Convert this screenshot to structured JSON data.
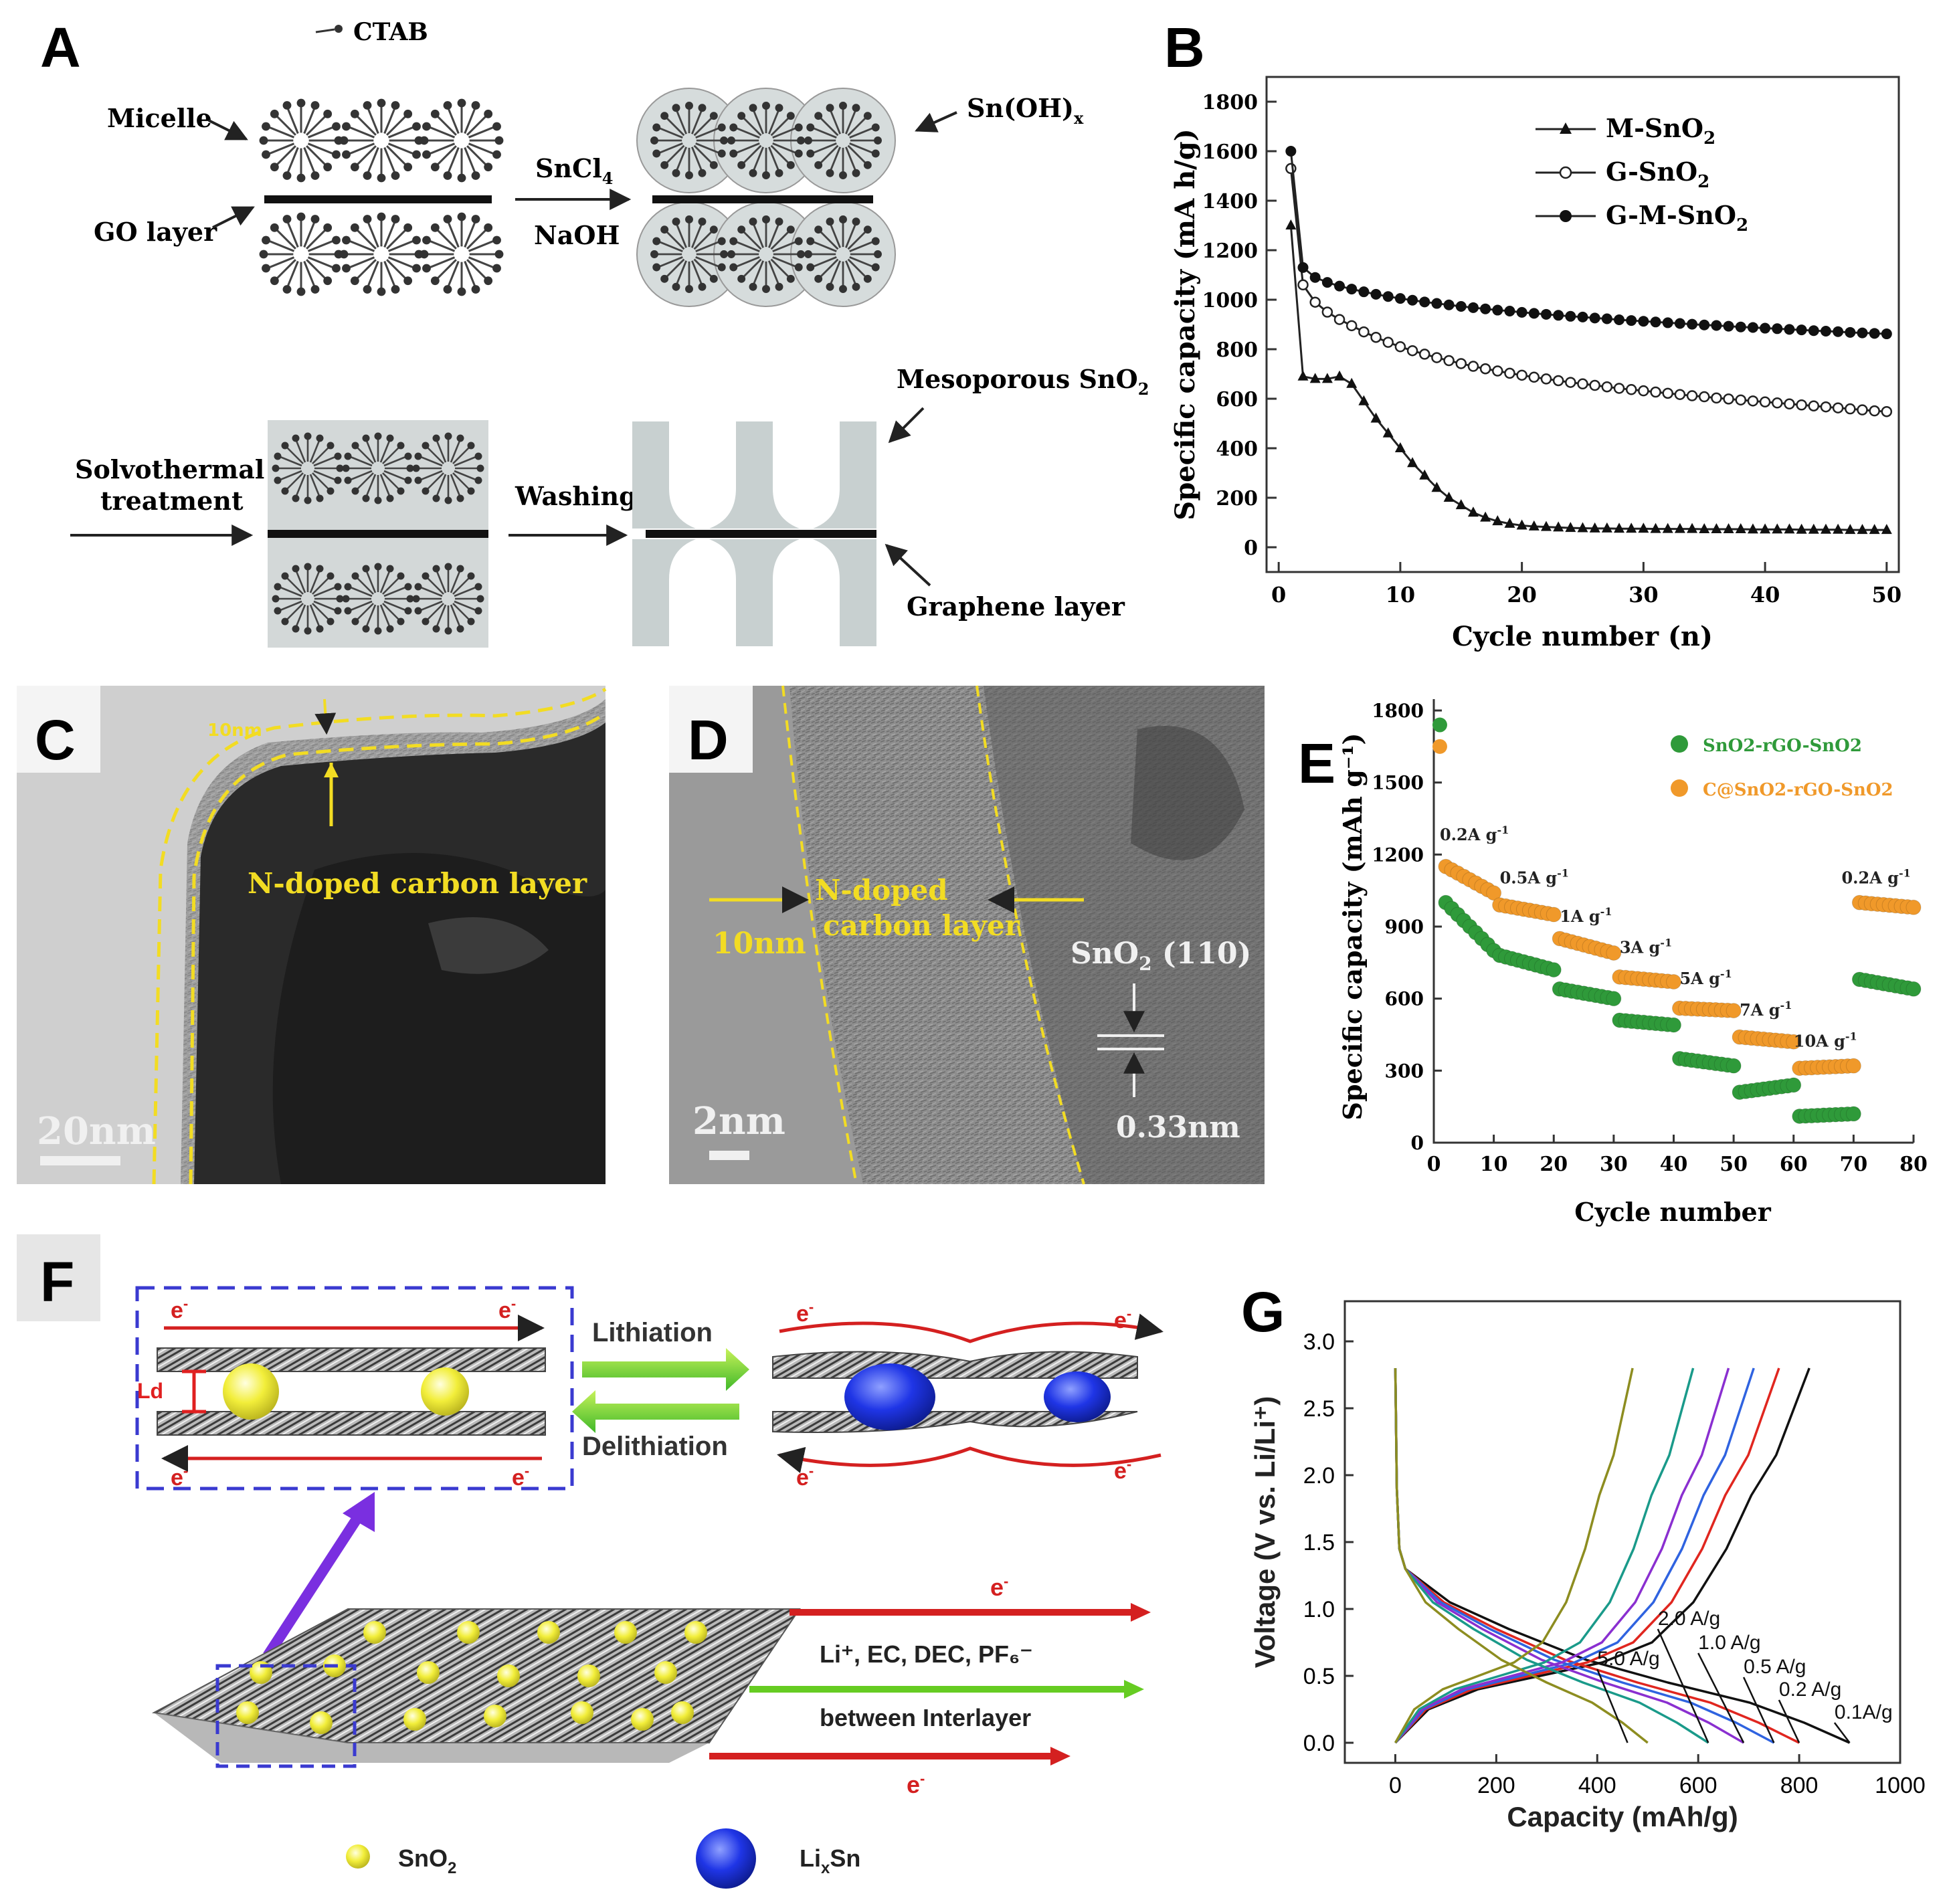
{
  "panel_labels": {
    "a": "A",
    "b": "B",
    "c": "C",
    "d": "D",
    "e": "E",
    "f": "F",
    "g": "G"
  },
  "panel_a": {
    "ctab": "CTAB",
    "micelle": "Micelle",
    "go_layer": "GO layer",
    "sncl4": "SnCl",
    "sncl4_sub": "4",
    "naoh": "NaOH",
    "snoh": "Sn(OH)",
    "snoh_sub": "x",
    "solvothermal_1": "Solvothermal",
    "solvothermal_2": "treatment",
    "washing": "Washing",
    "mesoporous": "Mesoporous SnO",
    "mesoporous_sub": "2",
    "graphene_layer": "Graphene layer"
  },
  "panel_c": {
    "carbon_layer": "N-doped carbon layer",
    "thickness": "10nm",
    "scale": "20nm"
  },
  "panel_d": {
    "carbon_layer_1": "N-doped",
    "carbon_layer_2": "carbon layer",
    "thickness": "10nm",
    "plane": "SnO",
    "plane_sub": "2",
    "plane_hkl": " (110)",
    "spacing": "0.33nm",
    "scale": "2nm"
  },
  "panel_f": {
    "electron": "e",
    "electron_sup": "-",
    "lithiation": "Lithiation",
    "delithiation": "Delithiation",
    "ld": "Ld",
    "electrolyte": "Li⁺, EC, DEC, PF₆⁻",
    "between": "between  Interlayer",
    "legend_sno2": "SnO",
    "legend_sno2_sub": "2",
    "legend_lixsn": "Li",
    "legend_lixsn_sub": "x",
    "legend_lixsn_tail": "Sn",
    "color_sno2": "#f2ee3a",
    "color_lixsn": "#1f35e6"
  },
  "chart_data": [
    {
      "panel": "B",
      "type": "line",
      "xlabel": "Cycle number (n)",
      "ylabel": "Specific capacity (mA h/g)",
      "xlim": [
        -1,
        51
      ],
      "ylim": [
        -100,
        1900
      ],
      "xticks": [
        0,
        10,
        20,
        30,
        40,
        50
      ],
      "yticks": [
        0,
        200,
        400,
        600,
        800,
        1000,
        1200,
        1400,
        1600,
        1800
      ],
      "legend": "top-right",
      "series": [
        {
          "name": "M-SnO2",
          "label_main": "M-SnO",
          "label_sub": "2",
          "marker": "triangle",
          "x": [
            1,
            2,
            3,
            4,
            5,
            6,
            7,
            8,
            9,
            10,
            11,
            12,
            13,
            14,
            15,
            16,
            17,
            18,
            19,
            20,
            21,
            22,
            23,
            24,
            25,
            26,
            27,
            28,
            29,
            30,
            31,
            32,
            33,
            34,
            35,
            36,
            37,
            38,
            39,
            40,
            41,
            42,
            43,
            44,
            45,
            46,
            47,
            48,
            49,
            50
          ],
          "y": [
            1300,
            690,
            680,
            680,
            690,
            660,
            590,
            520,
            460,
            400,
            340,
            290,
            240,
            200,
            170,
            140,
            120,
            105,
            95,
            88,
            84,
            82,
            80,
            78,
            77,
            76,
            76,
            75,
            75,
            75,
            74,
            74,
            74,
            74,
            73,
            73,
            73,
            73,
            72,
            72,
            72,
            72,
            71,
            71,
            71,
            71,
            70,
            70,
            70,
            70
          ]
        },
        {
          "name": "G-SnO2",
          "label_main": "G-SnO",
          "label_sub": "2",
          "marker": "open-circle",
          "x": [
            1,
            2,
            3,
            4,
            5,
            6,
            7,
            8,
            9,
            10,
            11,
            12,
            13,
            14,
            15,
            16,
            17,
            18,
            19,
            20,
            21,
            22,
            23,
            24,
            25,
            26,
            27,
            28,
            29,
            30,
            31,
            32,
            33,
            34,
            35,
            36,
            37,
            38,
            39,
            40,
            41,
            42,
            43,
            44,
            45,
            46,
            47,
            48,
            49,
            50
          ],
          "y": [
            1530,
            1060,
            990,
            950,
            920,
            895,
            870,
            848,
            828,
            810,
            794,
            780,
            766,
            754,
            742,
            731,
            721,
            712,
            703,
            695,
            687,
            680,
            673,
            666,
            660,
            654,
            648,
            642,
            637,
            632,
            627,
            622,
            617,
            612,
            608,
            603,
            599,
            595,
            591,
            587,
            583,
            579,
            575,
            571,
            567,
            563,
            559,
            555,
            551,
            548
          ]
        },
        {
          "name": "G-M-SnO2",
          "label_main": "G-M-SnO",
          "label_sub": "2",
          "marker": "filled-circle",
          "x": [
            1,
            2,
            3,
            4,
            5,
            6,
            7,
            8,
            9,
            10,
            11,
            12,
            13,
            14,
            15,
            16,
            17,
            18,
            19,
            20,
            21,
            22,
            23,
            24,
            25,
            26,
            27,
            28,
            29,
            30,
            31,
            32,
            33,
            34,
            35,
            36,
            37,
            38,
            39,
            40,
            41,
            42,
            43,
            44,
            45,
            46,
            47,
            48,
            49,
            50
          ],
          "y": [
            1600,
            1130,
            1090,
            1070,
            1055,
            1043,
            1032,
            1022,
            1013,
            1005,
            998,
            991,
            985,
            979,
            973,
            968,
            963,
            958,
            954,
            949,
            945,
            941,
            937,
            933,
            930,
            926,
            923,
            919,
            916,
            913,
            910,
            907,
            904,
            901,
            898,
            896,
            893,
            890,
            888,
            885,
            883,
            880,
            878,
            875,
            873,
            871,
            868,
            866,
            864,
            862
          ]
        }
      ]
    },
    {
      "panel": "E",
      "type": "scatter",
      "xlabel": "Cycle number",
      "ylabel": "Specific capacity (mAh g⁻¹)",
      "xlim": [
        0,
        80
      ],
      "ylim": [
        0,
        1800
      ],
      "xticks": [
        0,
        10,
        20,
        30,
        40,
        50,
        60,
        70,
        80
      ],
      "yticks": [
        0,
        300,
        600,
        900,
        1200,
        1500,
        1800
      ],
      "legend": "top-right",
      "rate_labels": [
        {
          "text": "0.2A g",
          "x": 1,
          "y": 1260
        },
        {
          "text": "0.5A g",
          "x": 11,
          "y": 1080
        },
        {
          "text": "1A g",
          "x": 21,
          "y": 920
        },
        {
          "text": "3A g",
          "x": 31,
          "y": 790
        },
        {
          "text": "5A g",
          "x": 41,
          "y": 660
        },
        {
          "text": "7A g",
          "x": 51,
          "y": 530
        },
        {
          "text": "10A g",
          "x": 60,
          "y": 400
        },
        {
          "text": "0.2A g",
          "x": 68,
          "y": 1080
        }
      ],
      "series": [
        {
          "name": "SnO2-rGO-SnO2",
          "color": "#2f9a3a",
          "segments": [
            {
              "x_start": 1,
              "x_end": 1,
              "y": [
                1740
              ]
            },
            {
              "x_start": 2,
              "x_end": 10,
              "y_start": 1000,
              "y_end": 800
            },
            {
              "x_start": 11,
              "x_end": 20,
              "y_start": 780,
              "y_end": 720
            },
            {
              "x_start": 21,
              "x_end": 30,
              "y_start": 640,
              "y_end": 600
            },
            {
              "x_start": 31,
              "x_end": 40,
              "y_start": 510,
              "y_end": 490
            },
            {
              "x_start": 41,
              "x_end": 50,
              "y_start": 350,
              "y_end": 320
            },
            {
              "x_start": 51,
              "x_end": 60,
              "y_start": 210,
              "y_end": 240
            },
            {
              "x_start": 61,
              "x_end": 70,
              "y_start": 110,
              "y_end": 120
            },
            {
              "x_start": 71,
              "x_end": 80,
              "y_start": 680,
              "y_end": 640
            }
          ]
        },
        {
          "name": "C@SnO2-rGO-SnO2",
          "color": "#f0992a",
          "segments": [
            {
              "x_start": 1,
              "x_end": 1,
              "y": [
                1650
              ]
            },
            {
              "x_start": 2,
              "x_end": 10,
              "y_start": 1150,
              "y_end": 1040
            },
            {
              "x_start": 11,
              "x_end": 20,
              "y_start": 990,
              "y_end": 950
            },
            {
              "x_start": 21,
              "x_end": 30,
              "y_start": 850,
              "y_end": 790
            },
            {
              "x_start": 31,
              "x_end": 40,
              "y_start": 690,
              "y_end": 670
            },
            {
              "x_start": 41,
              "x_end": 50,
              "y_start": 560,
              "y_end": 550
            },
            {
              "x_start": 51,
              "x_end": 60,
              "y_start": 440,
              "y_end": 420
            },
            {
              "x_start": 61,
              "x_end": 70,
              "y_start": 310,
              "y_end": 320
            },
            {
              "x_start": 71,
              "x_end": 80,
              "y_start": 1000,
              "y_end": 980
            }
          ]
        }
      ]
    },
    {
      "panel": "G",
      "type": "line",
      "xlabel": "Capacity (mAh/g)",
      "ylabel": "Voltage (V vs. Li/Li⁺)",
      "xlim": [
        -100,
        1000
      ],
      "ylim": [
        -0.15,
        3.3
      ],
      "xticks": [
        0,
        200,
        400,
        600,
        800,
        1000
      ],
      "yticks": [
        0.0,
        0.5,
        1.0,
        1.5,
        2.0,
        2.5,
        3.0
      ],
      "series": [
        {
          "name": "0.1A/g",
          "color": "#111111",
          "discharge_end": 900,
          "charge_end": 820
        },
        {
          "name": "0.2 A/g",
          "color": "#e0261f",
          "discharge_end": 800,
          "charge_end": 760
        },
        {
          "name": "0.5 A/g",
          "color": "#2f63e0",
          "discharge_end": 750,
          "charge_end": 710
        },
        {
          "name": "1.0 A/g",
          "color": "#8a2fd0",
          "discharge_end": 690,
          "charge_end": 660
        },
        {
          "name": "2.0 A/g",
          "color": "#1a9a8a",
          "discharge_end": 620,
          "charge_end": 590
        },
        {
          "name": "5.0 A/g",
          "color": "#8d8d20",
          "discharge_end": 500,
          "charge_end": 470
        }
      ]
    }
  ]
}
